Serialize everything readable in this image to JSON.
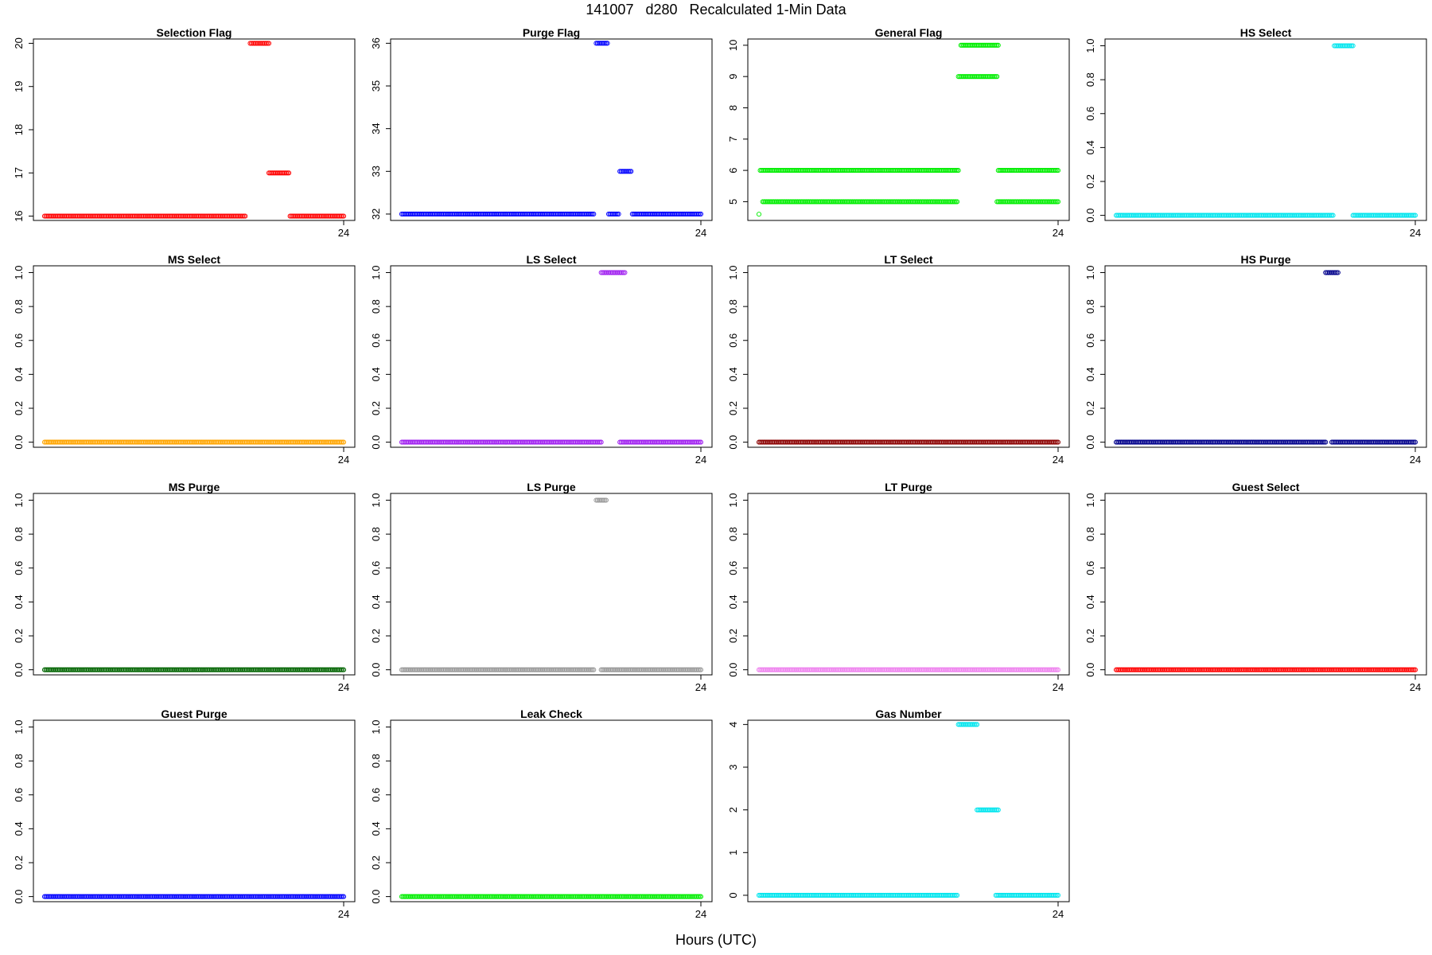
{
  "page": {
    "title": "141007   d280   Recalculated 1-Min Data",
    "xlabel": "Hours (UTC)"
  },
  "chart_data": [
    {
      "type": "scatter",
      "title": "Selection Flag",
      "color": "#ff0000",
      "ylim": [
        15.9,
        20.1
      ],
      "yticks": [
        "16",
        "17",
        "18",
        "19",
        "20"
      ],
      "xticks": [
        "24"
      ],
      "segments": [
        {
          "x": [
            0,
            16.1
          ],
          "y": 16
        },
        {
          "x": [
            16.5,
            18.0
          ],
          "y": 20
        },
        {
          "x": [
            18.0,
            19.6
          ],
          "y": 17
        },
        {
          "x": [
            19.7,
            24
          ],
          "y": 16
        }
      ]
    },
    {
      "type": "scatter",
      "title": "Purge Flag",
      "color": "#0000ff",
      "ylim": [
        31.85,
        36.1
      ],
      "yticks": [
        "32",
        "33",
        "34",
        "35",
        "36"
      ],
      "xticks": [
        "24"
      ],
      "segments": [
        {
          "x": [
            0,
            15.4
          ],
          "y": 32
        },
        {
          "x": [
            15.6,
            16.5
          ],
          "y": 36
        },
        {
          "x": [
            16.6,
            17.4
          ],
          "y": 32
        },
        {
          "x": [
            17.5,
            18.4
          ],
          "y": 33
        },
        {
          "x": [
            18.5,
            24
          ],
          "y": 32
        }
      ]
    },
    {
      "type": "scatter",
      "title": "General Flag",
      "color": "#00ee00",
      "ylim": [
        4.4,
        10.2
      ],
      "yticks": [
        "5",
        "6",
        "7",
        "8",
        "9",
        "10"
      ],
      "xticks": [
        "24"
      ],
      "segments": [
        {
          "x": [
            0,
            0
          ],
          "y": 4.6
        },
        {
          "x": [
            0.1,
            16.0
          ],
          "y": 6
        },
        {
          "x": [
            0.3,
            15.9
          ],
          "y": 5
        },
        {
          "x": [
            16.2,
            19.2
          ],
          "y": 10
        },
        {
          "x": [
            16.0,
            19.1
          ],
          "y": 9
        },
        {
          "x": [
            19.2,
            24
          ],
          "y": 6
        },
        {
          "x": [
            19.1,
            24
          ],
          "y": 5
        }
      ]
    },
    {
      "type": "scatter",
      "title": "HS Select",
      "color": "#00e5ee",
      "ylim": [
        -0.03,
        1.04
      ],
      "yticks": [
        "0.0",
        "0.2",
        "0.4",
        "0.6",
        "0.8",
        "1.0"
      ],
      "xticks": [
        "24"
      ],
      "segments": [
        {
          "x": [
            0,
            17.4
          ],
          "y": 0
        },
        {
          "x": [
            17.5,
            19.0
          ],
          "y": 1
        },
        {
          "x": [
            19.0,
            24
          ],
          "y": 0
        }
      ]
    },
    {
      "type": "scatter",
      "title": "MS Select",
      "color": "#ffa500",
      "ylim": [
        -0.03,
        1.04
      ],
      "yticks": [
        "0.0",
        "0.2",
        "0.4",
        "0.6",
        "0.8",
        "1.0"
      ],
      "xticks": [
        "24"
      ],
      "segments": [
        {
          "x": [
            0,
            24
          ],
          "y": 0
        }
      ]
    },
    {
      "type": "scatter",
      "title": "LS Select",
      "color": "#a020f0",
      "ylim": [
        -0.03,
        1.04
      ],
      "yticks": [
        "0.0",
        "0.2",
        "0.4",
        "0.6",
        "0.8",
        "1.0"
      ],
      "xticks": [
        "24"
      ],
      "segments": [
        {
          "x": [
            0,
            16.0
          ],
          "y": 0
        },
        {
          "x": [
            16.0,
            17.9
          ],
          "y": 1
        },
        {
          "x": [
            17.5,
            24
          ],
          "y": 0
        }
      ]
    },
    {
      "type": "scatter",
      "title": "LT Select",
      "color": "#8b0000",
      "ylim": [
        -0.03,
        1.04
      ],
      "yticks": [
        "0.0",
        "0.2",
        "0.4",
        "0.6",
        "0.8",
        "1.0"
      ],
      "xticks": [
        "24"
      ],
      "segments": [
        {
          "x": [
            0,
            24
          ],
          "y": 0
        }
      ]
    },
    {
      "type": "scatter",
      "title": "HS Purge",
      "color": "#00008b",
      "ylim": [
        -0.03,
        1.04
      ],
      "yticks": [
        "0.0",
        "0.2",
        "0.4",
        "0.6",
        "0.8",
        "1.0"
      ],
      "xticks": [
        "24"
      ],
      "segments": [
        {
          "x": [
            0,
            16.8
          ],
          "y": 0
        },
        {
          "x": [
            16.8,
            17.8
          ],
          "y": 1
        },
        {
          "x": [
            17.3,
            24
          ],
          "y": 0
        }
      ]
    },
    {
      "type": "scatter",
      "title": "MS Purge",
      "color": "#006400",
      "ylim": [
        -0.03,
        1.04
      ],
      "yticks": [
        "0.0",
        "0.2",
        "0.4",
        "0.6",
        "0.8",
        "1.0"
      ],
      "xticks": [
        "24"
      ],
      "segments": [
        {
          "x": [
            0,
            24
          ],
          "y": 0
        }
      ]
    },
    {
      "type": "scatter",
      "title": "LS Purge",
      "color": "#999999",
      "ylim": [
        -0.03,
        1.04
      ],
      "yticks": [
        "0.0",
        "0.2",
        "0.4",
        "0.6",
        "0.8",
        "1.0"
      ],
      "xticks": [
        "24"
      ],
      "segments": [
        {
          "x": [
            0,
            15.4
          ],
          "y": 0
        },
        {
          "x": [
            15.6,
            16.4
          ],
          "y": 1
        },
        {
          "x": [
            16.0,
            24
          ],
          "y": 0
        }
      ]
    },
    {
      "type": "scatter",
      "title": "LT Purge",
      "color": "#ee82ee",
      "ylim": [
        -0.03,
        1.04
      ],
      "yticks": [
        "0.0",
        "0.2",
        "0.4",
        "0.6",
        "0.8",
        "1.0"
      ],
      "xticks": [
        "24"
      ],
      "segments": [
        {
          "x": [
            0,
            24
          ],
          "y": 0
        }
      ]
    },
    {
      "type": "scatter",
      "title": "Guest Select",
      "color": "#ff0000",
      "ylim": [
        -0.03,
        1.04
      ],
      "yticks": [
        "0.0",
        "0.2",
        "0.4",
        "0.6",
        "0.8",
        "1.0"
      ],
      "xticks": [
        "24"
      ],
      "segments": [
        {
          "x": [
            0,
            24
          ],
          "y": 0
        }
      ]
    },
    {
      "type": "scatter",
      "title": "Guest Purge",
      "color": "#0000ff",
      "ylim": [
        -0.03,
        1.04
      ],
      "yticks": [
        "0.0",
        "0.2",
        "0.4",
        "0.6",
        "0.8",
        "1.0"
      ],
      "xticks": [
        "24"
      ],
      "segments": [
        {
          "x": [
            0,
            24
          ],
          "y": 0
        }
      ]
    },
    {
      "type": "scatter",
      "title": "Leak Check",
      "color": "#00ee00",
      "ylim": [
        -0.03,
        1.04
      ],
      "yticks": [
        "0.0",
        "0.2",
        "0.4",
        "0.6",
        "0.8",
        "1.0"
      ],
      "xticks": [
        "24"
      ],
      "segments": [
        {
          "x": [
            0,
            24
          ],
          "y": 0
        }
      ]
    },
    {
      "type": "scatter",
      "title": "Gas Number",
      "color": "#00e5ee",
      "ylim": [
        -0.15,
        4.1
      ],
      "yticks": [
        "0",
        "1",
        "2",
        "3",
        "4"
      ],
      "xticks": [
        "24"
      ],
      "segments": [
        {
          "x": [
            0,
            15.9
          ],
          "y": 0
        },
        {
          "x": [
            16.0,
            17.5
          ],
          "y": 4
        },
        {
          "x": [
            17.5,
            19.2
          ],
          "y": 2
        },
        {
          "x": [
            19.0,
            24
          ],
          "y": 0
        }
      ]
    }
  ]
}
